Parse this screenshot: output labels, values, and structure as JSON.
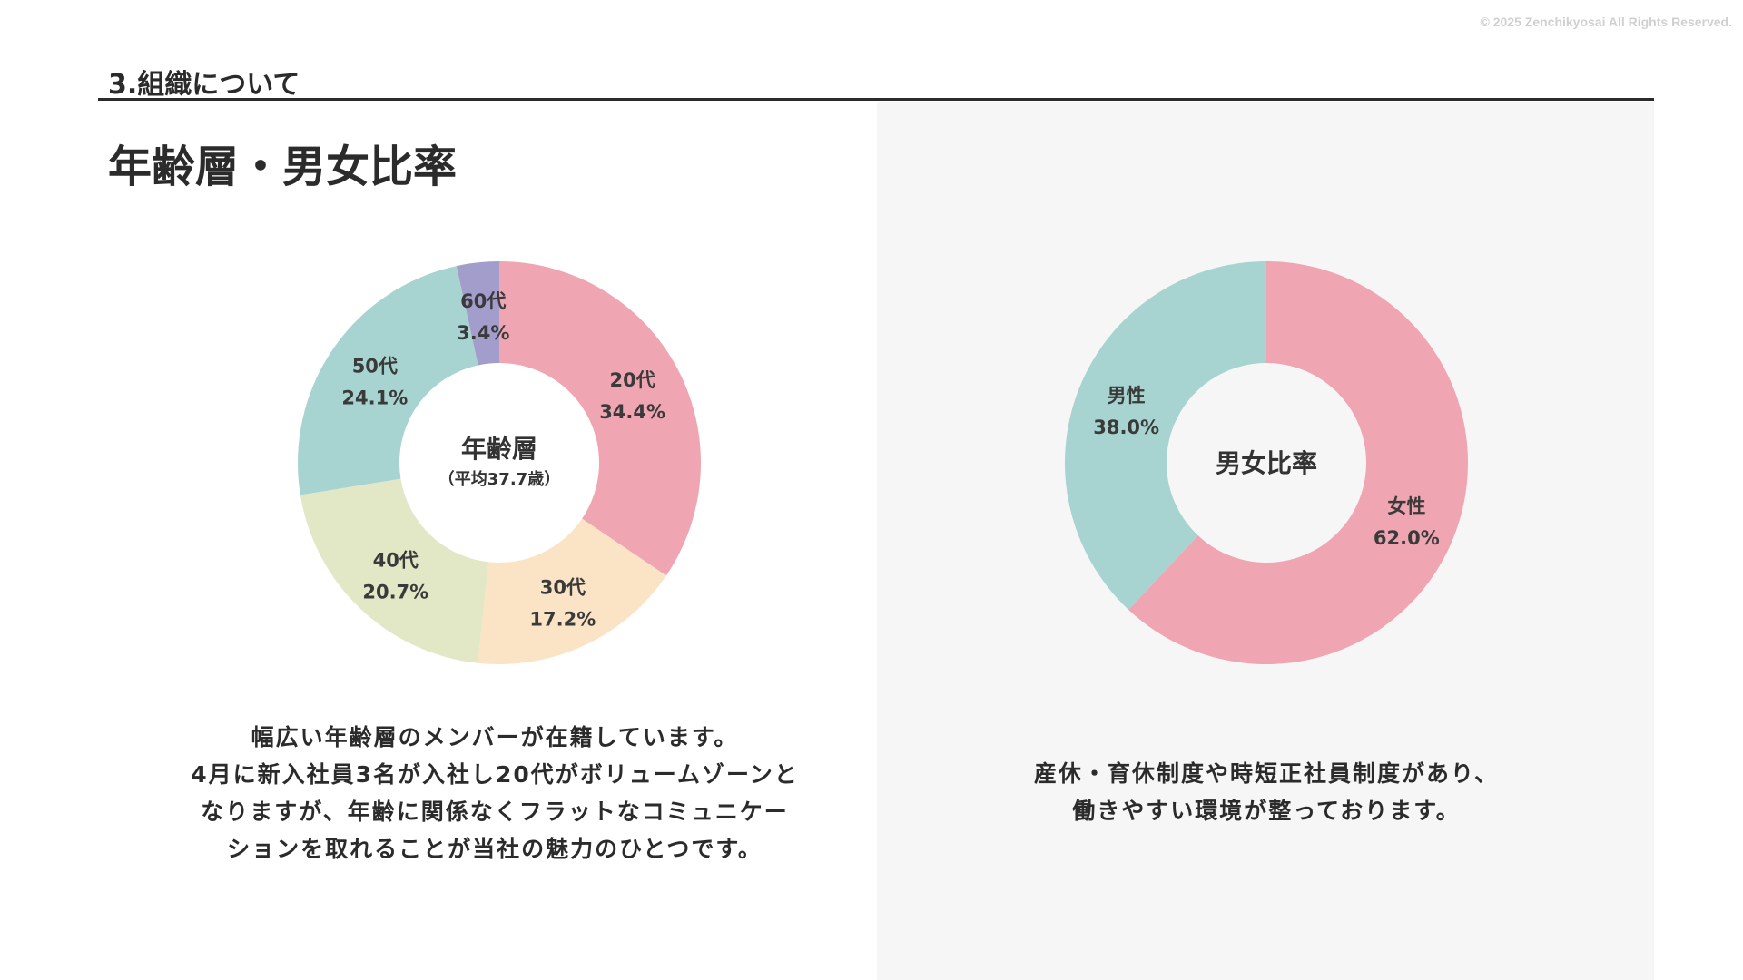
{
  "copyright": "© 2025 Zenchikyosai All Rights Reserved.",
  "section": {
    "title": "3.組織について"
  },
  "page": {
    "title": "年齢層・男女比率"
  },
  "left_caption": [
    "幅広い年齢層のメンバーが在籍しています。",
    "4月に新入社員3名が入社し20代がボリュームゾーンと",
    "なりますが、年齢に関係なくフラットなコミュニケー",
    "ションを取れることが当社の魅力のひとつです。"
  ],
  "right_caption": [
    "産休・育休制度や時短正社員制度があり、",
    "働きやすい環境が整っております。"
  ],
  "colors": {
    "pink": "#f0a6b2",
    "peach": "#fbe3c6",
    "lime": "#e2e8c6",
    "teal": "#a7d4d0",
    "purple": "#a39dcb",
    "text": "#333333",
    "rule": "#2b2b2b",
    "panel": "#f6f6f6"
  },
  "chart_data": [
    {
      "type": "pie",
      "center_title": "年齢層",
      "center_subtitle": "（平均37.7歳）",
      "slices": [
        {
          "label": "20代",
          "value": 34.4,
          "value_label": "34.4%",
          "color": "#f0a6b2"
        },
        {
          "label": "30代",
          "value": 17.2,
          "value_label": "17.2%",
          "color": "#fbe3c6"
        },
        {
          "label": "40代",
          "value": 20.7,
          "value_label": "20.7%",
          "color": "#e2e8c6"
        },
        {
          "label": "50代",
          "value": 24.1,
          "value_label": "24.1%",
          "color": "#a7d4d0"
        },
        {
          "label": "60代",
          "value": 3.4,
          "value_label": "3.4%",
          "color": "#a39dcb"
        }
      ]
    },
    {
      "type": "pie",
      "center_title": "男女比率",
      "slices": [
        {
          "label": "女性",
          "value": 62.0,
          "value_label": "62.0%",
          "color": "#f0a6b2"
        },
        {
          "label": "男性",
          "value": 38.0,
          "value_label": "38.0%",
          "color": "#a7d4d0"
        }
      ]
    }
  ]
}
